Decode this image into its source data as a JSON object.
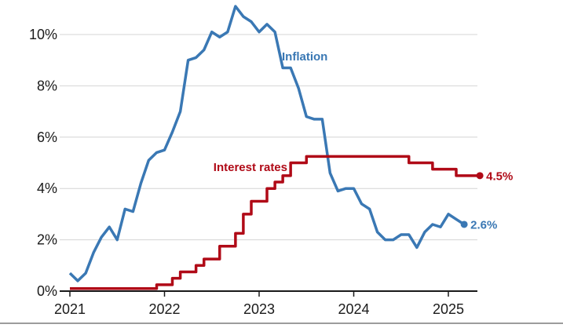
{
  "chart_data": {
    "type": "line",
    "title": "",
    "xlabel": "",
    "ylabel": "",
    "ylim": [
      0,
      11.2
    ],
    "y_ticks": [
      0,
      2,
      4,
      6,
      8,
      10
    ],
    "y_tick_labels": [
      "0%",
      "2%",
      "4%",
      "6%",
      "8%",
      "10%"
    ],
    "x_ticks": [
      2021,
      2022,
      2023,
      2024,
      2025
    ],
    "x_tick_labels": [
      "2021",
      "2022",
      "2023",
      "2024",
      "2025"
    ],
    "xlim": [
      2021.0,
      2025.33
    ],
    "grid": "horizontal",
    "series": [
      {
        "name": "Inflation",
        "color": "#3a78b4",
        "shape": "linear",
        "end_label": "2.6%",
        "x": [
          2021.0,
          2021.083,
          2021.167,
          2021.25,
          2021.333,
          2021.417,
          2021.5,
          2021.583,
          2021.667,
          2021.75,
          2021.833,
          2021.917,
          2022.0,
          2022.083,
          2022.167,
          2022.25,
          2022.333,
          2022.417,
          2022.5,
          2022.583,
          2022.667,
          2022.75,
          2022.833,
          2022.917,
          2023.0,
          2023.083,
          2023.167,
          2023.25,
          2023.333,
          2023.417,
          2023.5,
          2023.583,
          2023.667,
          2023.75,
          2023.833,
          2023.917,
          2024.0,
          2024.083,
          2024.167,
          2024.25,
          2024.333,
          2024.417,
          2024.5,
          2024.583,
          2024.667,
          2024.75,
          2024.833,
          2024.917,
          2025.0,
          2025.083,
          2025.167
        ],
        "values": [
          0.7,
          0.4,
          0.7,
          1.5,
          2.1,
          2.5,
          2.0,
          3.2,
          3.1,
          4.2,
          5.1,
          5.4,
          5.5,
          6.2,
          7.0,
          9.0,
          9.1,
          9.4,
          10.1,
          9.9,
          10.1,
          11.1,
          10.7,
          10.5,
          10.1,
          10.4,
          10.1,
          8.7,
          8.7,
          7.9,
          6.8,
          6.7,
          6.7,
          4.6,
          3.9,
          4.0,
          4.0,
          3.4,
          3.2,
          2.3,
          2.0,
          2.0,
          2.2,
          2.2,
          1.7,
          2.3,
          2.6,
          2.5,
          3.0,
          2.8,
          2.6
        ]
      },
      {
        "name": "Interest rates",
        "color": "#b00a17",
        "shape": "step",
        "end_label": "4.5%",
        "x": [
          2021.0,
          2021.917,
          2022.083,
          2022.167,
          2022.333,
          2022.417,
          2022.583,
          2022.75,
          2022.833,
          2022.917,
          2023.083,
          2023.167,
          2023.25,
          2023.333,
          2023.5,
          2023.583,
          2023.667,
          2024.583,
          2024.833,
          2025.083,
          2025.333
        ],
        "values": [
          0.1,
          0.25,
          0.5,
          0.75,
          1.0,
          1.25,
          1.75,
          2.25,
          3.0,
          3.5,
          4.0,
          4.25,
          4.5,
          5.0,
          5.25,
          5.25,
          5.25,
          5.0,
          4.75,
          4.5,
          4.5
        ]
      }
    ]
  }
}
